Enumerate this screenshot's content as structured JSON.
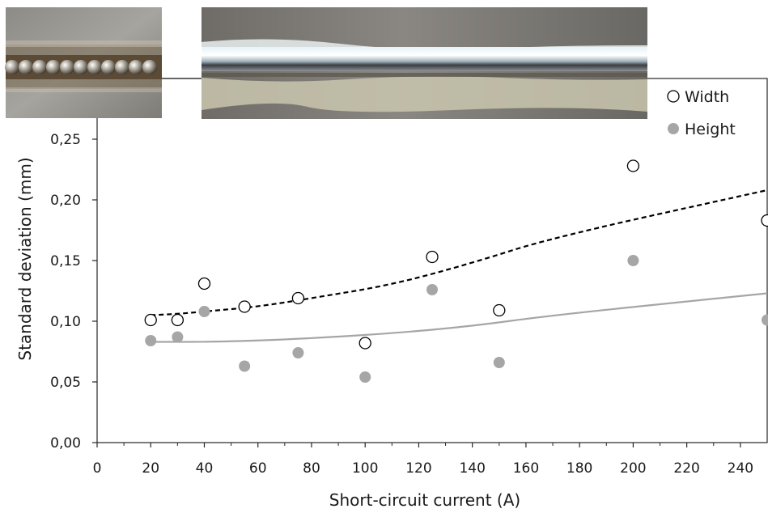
{
  "chart_data": {
    "type": "scatter",
    "xlabel": "Short-circuit current (A)",
    "ylabel": "Standard deviation  (mm)",
    "xlim": [
      0,
      250
    ],
    "ylim": [
      0,
      0.25
    ],
    "xticks": [
      "0",
      "20",
      "40",
      "60",
      "80",
      "100",
      "120",
      "140",
      "160",
      "180",
      "200",
      "220",
      "240"
    ],
    "yticks": [
      "0,00",
      "0,05",
      "0,10",
      "0,15",
      "0,20",
      "0,25"
    ],
    "grid": false,
    "legend": "top-right",
    "series": [
      {
        "name": "Width",
        "marker": "open-circle",
        "color": "#000000",
        "trendline": "dashed polynomial",
        "x": [
          20,
          30,
          40,
          55,
          75,
          100,
          125,
          150,
          200,
          250
        ],
        "y": [
          0.101,
          0.101,
          0.131,
          0.112,
          0.119,
          0.082,
          0.153,
          0.109,
          0.228,
          0.183
        ],
        "trend_y": [
          0.105,
          0.106,
          0.108,
          0.112,
          0.119,
          0.13,
          0.148,
          0.169,
          0.208
        ]
      },
      {
        "name": "Height",
        "marker": "filled-circle",
        "color": "#a6a6a6",
        "trendline": "solid polynomial",
        "x": [
          20,
          30,
          40,
          55,
          75,
          100,
          125,
          150,
          200,
          250
        ],
        "y": [
          0.084,
          0.087,
          0.108,
          0.063,
          0.074,
          0.054,
          0.126,
          0.066,
          0.15,
          0.101
        ],
        "trend_y": [
          0.083,
          0.083,
          0.083,
          0.084,
          0.086,
          0.09,
          0.096,
          0.105,
          0.123
        ]
      }
    ],
    "trend_x": [
      20,
      30,
      40,
      60,
      80,
      110,
      140,
      170,
      250
    ],
    "photos": [
      {
        "name": "weld-bead-photo-beaded"
      },
      {
        "name": "weld-bead-photo-smooth"
      }
    ]
  }
}
